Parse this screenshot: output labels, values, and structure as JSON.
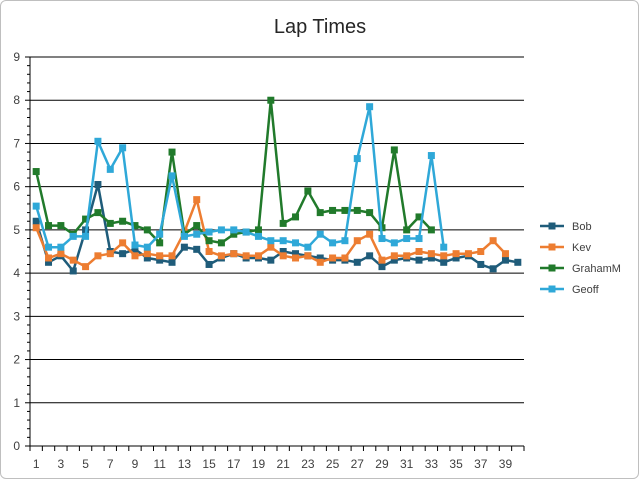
{
  "chart_data": {
    "type": "line",
    "title": "Lap Times",
    "xlabel": "",
    "ylabel": "",
    "ylim": [
      0,
      9
    ],
    "yticks": [
      0,
      1,
      2,
      3,
      4,
      5,
      6,
      7,
      8,
      9
    ],
    "xtick_labels": [
      1,
      3,
      5,
      7,
      9,
      11,
      13,
      15,
      17,
      19,
      21,
      23,
      25,
      27,
      29,
      31,
      33,
      35,
      37,
      39
    ],
    "x_count": 40,
    "grid": "horizontal major",
    "legend_position": "right",
    "series": [
      {
        "name": "Bob",
        "color": "#1f5c7a",
        "marker": "square",
        "values": [
          5.2,
          4.25,
          4.4,
          4.05,
          5.0,
          6.05,
          4.5,
          4.45,
          4.55,
          4.35,
          4.3,
          4.25,
          4.6,
          4.55,
          4.2,
          4.35,
          4.45,
          4.35,
          4.35,
          4.3,
          4.5,
          4.45,
          4.4,
          4.35,
          4.3,
          4.3,
          4.25,
          4.4,
          4.15,
          4.3,
          4.35,
          4.3,
          4.35,
          4.25,
          4.35,
          4.4,
          4.2,
          4.1,
          4.3,
          4.25
        ]
      },
      {
        "name": "Kev",
        "color": "#ed7d31",
        "marker": "square",
        "values": [
          5.05,
          4.35,
          4.45,
          4.3,
          4.15,
          4.4,
          4.45,
          4.7,
          4.4,
          4.45,
          4.4,
          4.4,
          4.95,
          5.7,
          4.5,
          4.4,
          4.45,
          4.4,
          4.4,
          4.6,
          4.4,
          4.35,
          4.4,
          4.25,
          4.35,
          4.35,
          4.75,
          4.9,
          4.3,
          4.4,
          4.4,
          4.5,
          4.45,
          4.4,
          4.45,
          4.45,
          4.5,
          4.75,
          4.45,
          null
        ]
      },
      {
        "name": "GrahamM",
        "color": "#217a2b",
        "marker": "square",
        "values": [
          6.35,
          5.1,
          5.1,
          4.9,
          5.25,
          5.4,
          5.15,
          5.2,
          5.1,
          5.0,
          4.7,
          6.8,
          4.9,
          5.1,
          4.75,
          4.7,
          4.9,
          4.95,
          5.0,
          8.0,
          5.15,
          5.3,
          5.9,
          5.4,
          5.45,
          5.45,
          5.45,
          5.4,
          5.05,
          6.85,
          5.0,
          5.3,
          5.0,
          null,
          null,
          null,
          null,
          null,
          null,
          null
        ]
      },
      {
        "name": "Geoff",
        "color": "#2fa8d8",
        "marker": "square",
        "values": [
          5.55,
          4.6,
          4.6,
          4.85,
          4.85,
          7.05,
          6.4,
          6.9,
          4.65,
          4.6,
          4.9,
          6.25,
          4.85,
          4.9,
          4.95,
          5.0,
          5.0,
          4.95,
          4.85,
          4.75,
          4.75,
          4.7,
          4.6,
          4.9,
          4.7,
          4.75,
          6.65,
          7.85,
          4.8,
          4.7,
          4.8,
          4.8,
          6.72,
          4.6,
          null,
          null,
          null,
          null,
          null,
          null
        ]
      }
    ]
  }
}
